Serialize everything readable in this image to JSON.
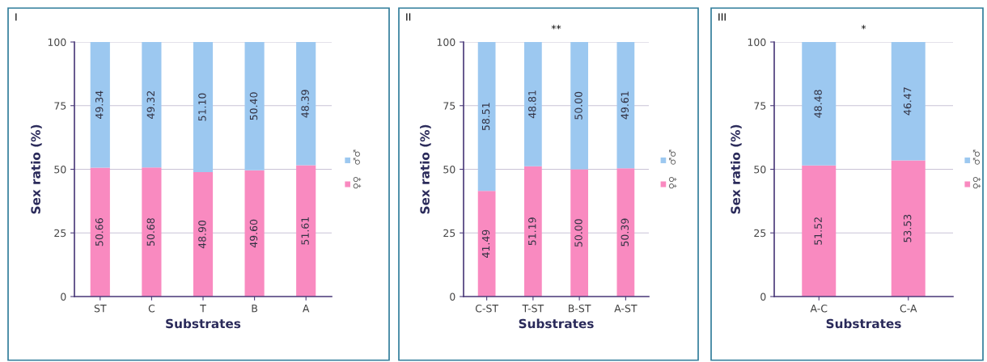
{
  "chart_data": [
    {
      "type": "bar",
      "stacked": true,
      "annotations": [
        "I"
      ],
      "ylabel": "Sex ratio (%)",
      "xlabel": "Substrates",
      "categories": [
        "ST",
        "C",
        "T",
        "B",
        "A"
      ],
      "ylim": [
        0,
        100
      ],
      "yticks": [
        0,
        25,
        50,
        75,
        100
      ],
      "grid": "y",
      "legend": "right",
      "series": [
        {
          "name": "♀♀",
          "color": "#f98ac0",
          "values": [
            50.66,
            50.68,
            48.9,
            49.6,
            51.61
          ],
          "value_labels": [
            "50.66",
            "50.68",
            "48.90",
            "49.60",
            "51.61"
          ]
        },
        {
          "name": "♂♂",
          "color": "#9cc8f0",
          "values": [
            49.34,
            49.32,
            51.1,
            50.4,
            48.39
          ],
          "value_labels": [
            "49.34",
            "49.32",
            "51.10",
            "50.40",
            "48.39"
          ]
        }
      ]
    },
    {
      "type": "bar",
      "stacked": true,
      "annotations": [
        "II",
        "**"
      ],
      "ylabel": "Sex ratio (%)",
      "xlabel": "Substrates",
      "categories": [
        "C-ST",
        "T-ST",
        "B-ST",
        "A-ST"
      ],
      "ylim": [
        0,
        100
      ],
      "yticks": [
        0,
        25,
        50,
        75,
        100
      ],
      "grid": "y",
      "legend": "right",
      "series": [
        {
          "name": "♀♀",
          "color": "#f98ac0",
          "values": [
            41.49,
            51.19,
            50.0,
            50.39
          ],
          "value_labels": [
            "41.49",
            "51.19",
            "50.00",
            "50.39"
          ]
        },
        {
          "name": "♂♂",
          "color": "#9cc8f0",
          "values": [
            58.51,
            48.81,
            50.0,
            49.61
          ],
          "value_labels": [
            "58.51",
            "48.81",
            "50.00",
            "49.61"
          ]
        }
      ]
    },
    {
      "type": "bar",
      "stacked": true,
      "annotations": [
        "III",
        "*"
      ],
      "ylabel": "Sex ratio (%)",
      "xlabel": "Substrates",
      "categories": [
        "A-C",
        "C-A"
      ],
      "ylim": [
        0,
        100
      ],
      "yticks": [
        0,
        25,
        50,
        75,
        100
      ],
      "grid": "y",
      "legend": "right",
      "series": [
        {
          "name": "♀♀",
          "color": "#f98ac0",
          "values": [
            51.52,
            53.53
          ],
          "value_labels": [
            "51.52",
            "53.53"
          ]
        },
        {
          "name": "♂♂",
          "color": "#9cc8f0",
          "values": [
            48.48,
            46.47
          ],
          "value_labels": [
            "48.48",
            "46.47"
          ]
        }
      ]
    }
  ]
}
